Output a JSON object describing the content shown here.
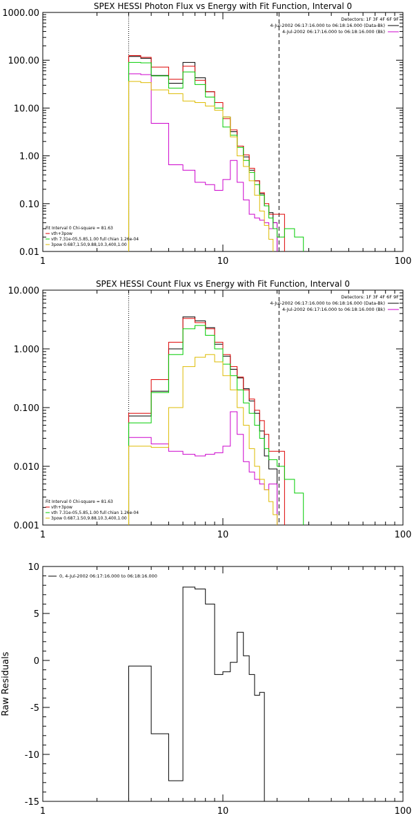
{
  "chart_data": [
    {
      "type": "line",
      "step": true,
      "title": "SPEX HESSI Photon Flux vs Energy with Fit Function, Interval 0",
      "xscale": "log",
      "yscale": "log",
      "xlim": [
        1,
        100
      ],
      "ylim": [
        0.01,
        1000
      ],
      "xticks": [
        1,
        10,
        100
      ],
      "xtick_labels": [
        "1",
        "10",
        "100"
      ],
      "yticks": [
        0.01,
        0.1,
        1,
        10,
        100,
        1000
      ],
      "ytick_labels": [
        "0.01",
        "0.10",
        "1.00",
        "10.00",
        "100.00",
        "1000.00"
      ],
      "vlines": [
        {
          "x": 3,
          "style": "dotted",
          "color": "#000000"
        },
        {
          "x": 20.5,
          "style": "dashed",
          "color": "#000000"
        }
      ],
      "top_legend": [
        {
          "text": "Detectors: 1F 3F 4F 6F 9F",
          "line": false,
          "color": "#000000"
        },
        {
          "text": "4-Jul-2002 06:17:16.000 to 06:18:16.000 (Data-Bk)",
          "line": true,
          "color": "#000000"
        },
        {
          "text": "4-Jul-2002 06:17:16.000 to 06:18:16.000 (Bk)",
          "line": true,
          "color": "#cc00cc"
        }
      ],
      "fit_legend": [
        {
          "text": "Fit Interval 0    Chi-square = 81.63",
          "line": false,
          "color": "#000000"
        },
        {
          "text": "vth+3pow",
          "line": true,
          "color": "#dd0000"
        },
        {
          "text": "vth 7.31e-05,5.85,1.00   full chian 1.26e-04",
          "line": true,
          "color": "#00cc00"
        },
        {
          "text": "3pow 0.687,1.50,9.88,10.3,400,1.00",
          "line": true,
          "color": "#ddbb00"
        }
      ],
      "edges": [
        3,
        3.5,
        4,
        5,
        6,
        7,
        8,
        9,
        10,
        11,
        12,
        13,
        14,
        15,
        16,
        17,
        18,
        19,
        20,
        22,
        25,
        28
      ],
      "series": [
        {
          "name": "Data-Bk",
          "color": "#000000",
          "values": [
            120,
            110,
            48,
            33,
            90,
            43,
            22,
            13,
            6.5,
            3.2,
            1.6,
            0.95,
            0.5,
            0.3,
            0.16,
            0.09,
            0.065,
            0.04,
            null,
            null,
            null
          ]
        },
        {
          "name": "Bk",
          "color": "#cc00cc",
          "values": [
            52,
            50,
            4.8,
            0.65,
            0.5,
            0.28,
            0.25,
            0.19,
            0.32,
            0.8,
            0.28,
            0.12,
            0.06,
            0.05,
            0.045,
            0.04,
            0.03,
            0.04,
            null,
            null,
            null
          ]
        },
        {
          "name": "vth+3pow",
          "color": "#dd0000",
          "values": [
            125,
            115,
            72,
            40,
            75,
            38,
            22,
            13,
            6,
            3.5,
            1.6,
            1.05,
            0.55,
            0.3,
            0.17,
            0.1,
            0.06,
            0.06,
            0.06,
            null,
            null
          ]
        },
        {
          "name": "vth",
          "color": "#00cc00",
          "values": [
            90,
            88,
            47,
            26,
            57,
            31,
            17,
            10,
            4,
            2.7,
            1.5,
            0.8,
            0.45,
            0.25,
            0.15,
            0.09,
            0.05,
            0.03,
            0.02,
            0.03,
            0.02
          ]
        },
        {
          "name": "3pow",
          "color": "#ddbb00",
          "values": [
            36,
            34,
            24,
            20,
            14,
            13,
            11,
            9,
            6.5,
            2.5,
            1.0,
            0.6,
            0.3,
            0.15,
            0.07,
            0.035,
            0.018,
            null,
            null,
            null,
            null
          ]
        }
      ]
    },
    {
      "type": "line",
      "step": true,
      "title": "SPEX HESSI Count Flux vs Energy with Fit Function, Interval 0",
      "xscale": "log",
      "yscale": "log",
      "xlim": [
        1,
        100
      ],
      "ylim": [
        0.001,
        10
      ],
      "xticks": [
        1,
        10,
        100
      ],
      "xtick_labels": [
        "1",
        "10",
        "100"
      ],
      "yticks": [
        0.001,
        0.01,
        0.1,
        1,
        10
      ],
      "ytick_labels": [
        "0.001",
        "0.010",
        "0.100",
        "1.000",
        "10.000"
      ],
      "vlines": [
        {
          "x": 3,
          "style": "dotted",
          "color": "#000000"
        },
        {
          "x": 20.5,
          "style": "dashed",
          "color": "#000000"
        }
      ],
      "top_legend": [
        {
          "text": "Detectors: 1F 3F 4F 6F 9F",
          "line": false,
          "color": "#000000"
        },
        {
          "text": "4-Jul-2002 06:17:16.000 to 06:18:16.000 (Data-Bk)",
          "line": true,
          "color": "#000000"
        },
        {
          "text": "4-Jul-2002 06:17:16.000 to 06:18:16.000 (Bk)",
          "line": true,
          "color": "#cc00cc"
        }
      ],
      "fit_legend": [
        {
          "text": "Fit Interval 0    Chi-square = 81.63",
          "line": false,
          "color": "#000000"
        },
        {
          "text": "vth+3pow",
          "line": true,
          "color": "#dd0000"
        },
        {
          "text": "vth 7.31e-05,5.85,1.00   full chian 1.26e-04",
          "line": true,
          "color": "#00cc00"
        },
        {
          "text": "3pow 0.687,1.50,9.88,10.3,400,1.00",
          "line": true,
          "color": "#ddbb00"
        }
      ],
      "edges": [
        3,
        3.5,
        4,
        5,
        6,
        7,
        8,
        9,
        10,
        11,
        12,
        13,
        14,
        15,
        16,
        17,
        18,
        19,
        20,
        22,
        25,
        28
      ],
      "series": [
        {
          "name": "Data-Bk",
          "color": "#000000",
          "values": [
            0.072,
            0.072,
            0.19,
            1.0,
            3.5,
            3.0,
            2.3,
            1.2,
            0.75,
            0.45,
            0.32,
            0.21,
            0.13,
            0.08,
            0.04,
            0.015,
            0.009,
            0.009,
            null,
            null,
            null
          ]
        },
        {
          "name": "Bk",
          "color": "#cc00cc",
          "values": [
            0.031,
            0.031,
            0.024,
            0.018,
            0.016,
            0.015,
            0.016,
            0.017,
            0.022,
            0.085,
            0.035,
            0.012,
            0.008,
            0.006,
            0.005,
            0.004,
            0.005,
            0.005,
            null,
            null,
            null
          ]
        },
        {
          "name": "vth+3pow",
          "color": "#dd0000",
          "values": [
            0.08,
            0.08,
            0.3,
            1.3,
            3.3,
            2.8,
            2.2,
            1.3,
            0.8,
            0.5,
            0.33,
            0.2,
            0.14,
            0.09,
            0.06,
            0.035,
            0.018,
            0.018,
            0.018,
            null,
            null
          ]
        },
        {
          "name": "vth",
          "color": "#00cc00",
          "values": [
            0.055,
            0.055,
            0.18,
            0.8,
            2.2,
            2.5,
            1.7,
            1.0,
            0.55,
            0.35,
            0.2,
            0.12,
            0.08,
            0.05,
            0.03,
            0.02,
            0.013,
            0.013,
            0.01,
            0.006,
            0.0035
          ]
        },
        {
          "name": "3pow",
          "color": "#ddbb00",
          "values": [
            0.022,
            0.022,
            0.021,
            0.1,
            0.5,
            0.72,
            0.8,
            0.6,
            0.35,
            0.2,
            0.1,
            0.05,
            0.02,
            0.01,
            0.006,
            0.004,
            0.0025,
            0.0015,
            null,
            null,
            null
          ]
        }
      ]
    },
    {
      "type": "line",
      "step": true,
      "title": "",
      "xscale": "log",
      "yscale": "linear",
      "xlim": [
        1,
        100
      ],
      "ylim": [
        -15,
        10
      ],
      "xticks": [
        1,
        10,
        100
      ],
      "xtick_labels": [
        "1",
        "10",
        "100"
      ],
      "yticks": [
        -15,
        -10,
        -5,
        0,
        5,
        10
      ],
      "ytick_labels": [
        "-15",
        "-10",
        "-5",
        "0",
        "5",
        "10"
      ],
      "ylabel": "Raw Residuals",
      "vlines": [],
      "top_legend": [],
      "fit_legend": [],
      "inner_legend": [
        {
          "text": "0,  4-Jul-2002 06:17:16.000 to 06:18:16.000",
          "line": true,
          "color": "#000000"
        }
      ],
      "edges": [
        3,
        4,
        5,
        6,
        7,
        8,
        9,
        10,
        11,
        12,
        13,
        14,
        15,
        16,
        17,
        18,
        19,
        20
      ],
      "series": [
        {
          "name": "0",
          "color": "#000000",
          "drop_to_bottom": true,
          "values": [
            -0.6,
            -7.8,
            -12.8,
            7.8,
            7.6,
            6.0,
            -1.5,
            -1.2,
            -0.2,
            3.0,
            0.5,
            -1.5,
            -3.7,
            -3.4,
            null,
            null,
            null
          ]
        }
      ]
    }
  ]
}
